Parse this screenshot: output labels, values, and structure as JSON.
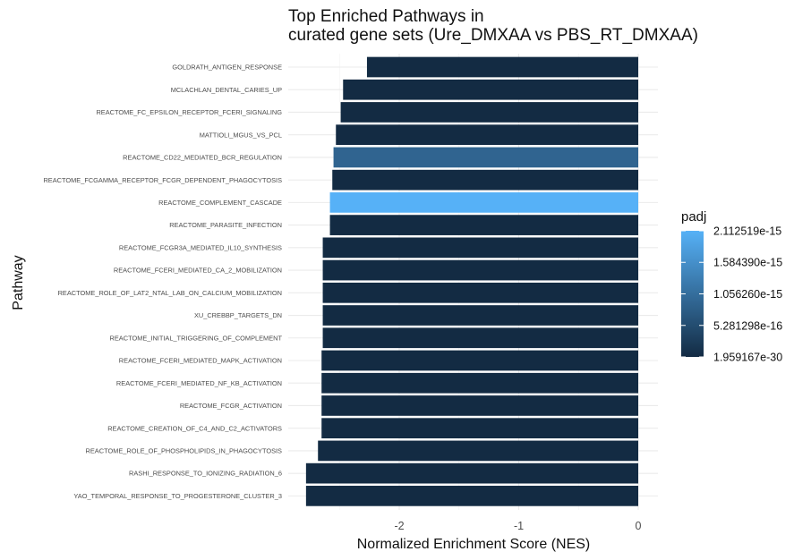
{
  "chart_data": {
    "type": "bar",
    "orientation": "horizontal",
    "title": "Top Enriched Pathways in\ncurated gene sets (Ure_DMXAA vs PBS_RT_DMXAA)",
    "xlabel": "Normalized Enrichment Score (NES)",
    "ylabel": "Pathway",
    "xlim": [
      -2.8,
      0.15
    ],
    "x_ticks": [
      -2,
      -1,
      0
    ],
    "x_tick_labels": [
      "-2",
      "-1",
      "0"
    ],
    "grid": true,
    "legend_position": "right",
    "categories": [
      "GOLDRATH_ANTIGEN_RESPONSE",
      "MCLACHLAN_DENTAL_CARIES_UP",
      "REACTOME_FC_EPSILON_RECEPTOR_FCERI_SIGNALING",
      "MATTIOLI_MGUS_VS_PCL",
      "REACTOME_CD22_MEDIATED_BCR_REGULATION",
      "REACTOME_FCGAMMA_RECEPTOR_FCGR_DEPENDENT_PHAGOCYTOSIS",
      "REACTOME_COMPLEMENT_CASCADE",
      "REACTOME_PARASITE_INFECTION",
      "REACTOME_FCGR3A_MEDIATED_IL10_SYNTHESIS",
      "REACTOME_FCERI_MEDIATED_CA_2_MOBILIZATION",
      "REACTOME_ROLE_OF_LAT2_NTAL_LAB_ON_CALCIUM_MOBILIZATION",
      "XU_CREBBP_TARGETS_DN",
      "REACTOME_INITIAL_TRIGGERING_OF_COMPLEMENT",
      "REACTOME_FCERI_MEDIATED_MAPK_ACTIVATION",
      "REACTOME_FCERI_MEDIATED_NF_KB_ACTIVATION",
      "REACTOME_FCGR_ACTIVATION",
      "REACTOME_CREATION_OF_C4_AND_C2_ACTIVATORS",
      "REACTOME_ROLE_OF_PHOSPHOLIPIDS_IN_PHAGOCYTOSIS",
      "RASHI_RESPONSE_TO_IONIZING_RADIATION_6",
      "YAO_TEMPORAL_RESPONSE_TO_PROGESTERONE_CLUSTER_3"
    ],
    "values": [
      -2.27,
      -2.47,
      -2.49,
      -2.53,
      -2.55,
      -2.56,
      -2.58,
      -2.58,
      -2.64,
      -2.64,
      -2.64,
      -2.64,
      -2.64,
      -2.65,
      -2.65,
      -2.65,
      -2.65,
      -2.68,
      -2.78,
      -2.78
    ],
    "padj": [
      1e-20,
      1e-18,
      1e-20,
      1e-20,
      9e-16,
      1e-19,
      2.112519e-15,
      1e-19,
      1e-20,
      1e-20,
      1e-20,
      1e-22,
      1e-22,
      1e-21,
      1e-21,
      1e-21,
      1e-22,
      1e-21,
      1e-25,
      1.959167e-30
    ],
    "color_scale": {
      "title": "padj",
      "low_color": "#132B43",
      "high_color": "#56B1F7",
      "min": 1.959167e-30,
      "max": 2.112519e-15,
      "breaks": [
        1.959167e-30,
        5.281298e-16,
        1.05626e-15,
        1.58439e-15,
        2.112519e-15
      ],
      "break_labels": [
        "1.959167e-30",
        "5.281298e-16",
        "1.056260e-15",
        "1.584390e-15",
        "2.112519e-15"
      ]
    }
  }
}
